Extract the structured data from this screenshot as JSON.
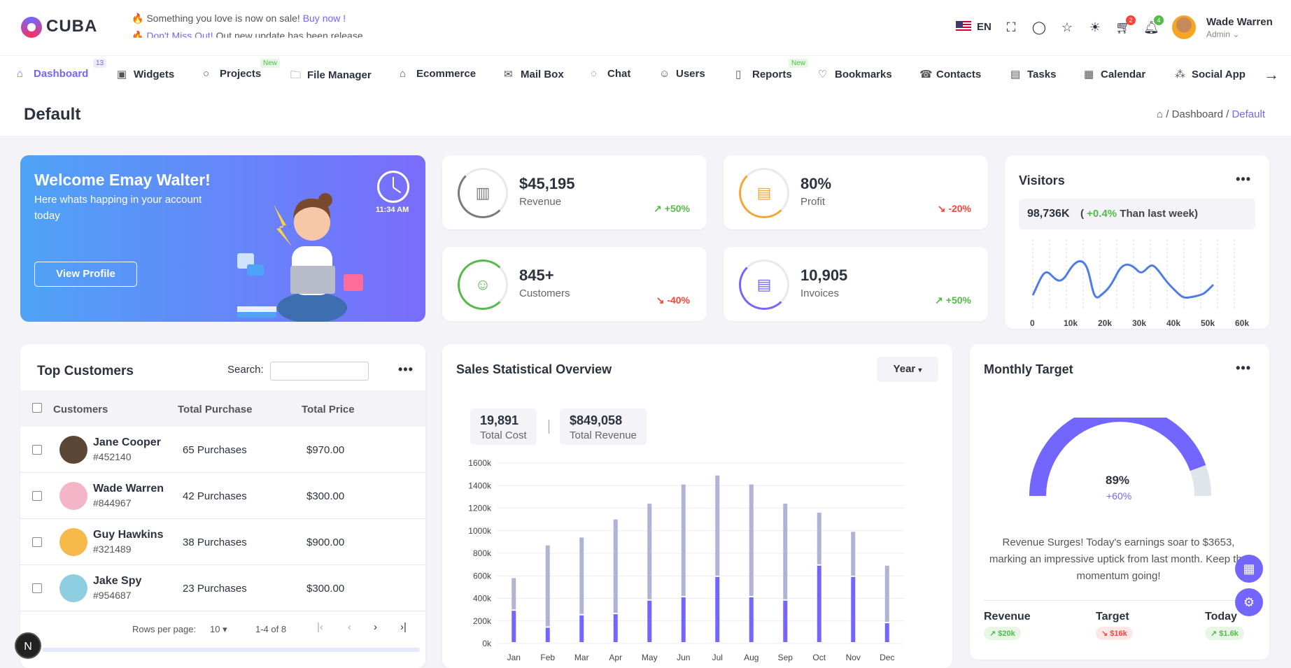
{
  "header": {
    "logo": "CUBA",
    "ticker1_text": "Something you love is now on sale! ",
    "ticker1_link": "Buy now !",
    "ticker2_link": "Don't Miss Out!",
    "ticker2_text": " Out new update has been release.",
    "language": "EN",
    "cart_count": "2",
    "notif_count": "4",
    "user_name": "Wade Warren",
    "user_role": "Admin ⌄"
  },
  "nav": {
    "items": [
      {
        "label": "Dashboard"
      },
      {
        "label": "Widgets"
      },
      {
        "label": "Projects"
      },
      {
        "label": "File Manager"
      },
      {
        "label": "Ecommerce"
      },
      {
        "label": "Mail Box"
      },
      {
        "label": "Chat"
      },
      {
        "label": "Users"
      },
      {
        "label": "Reports"
      },
      {
        "label": "Bookmarks"
      },
      {
        "label": "Contacts"
      },
      {
        "label": "Tasks"
      },
      {
        "label": "Calendar"
      },
      {
        "label": "Social App"
      }
    ],
    "dashboard_count": "13",
    "new_tag": "New"
  },
  "page": {
    "title": "Default",
    "crumb_dashboard": "Dashboard",
    "crumb_current": "Default",
    "sep": "/"
  },
  "welcome": {
    "title": "Welcome Emay Walter!",
    "subtitle": "Here whats happing in your account today",
    "button": "View Profile",
    "time": "11:34 AM"
  },
  "stats": [
    {
      "value": "$45,195",
      "label": "Revenue",
      "change": "+50%",
      "dir": "up",
      "color": "#7a7a7a",
      "icon": "▥"
    },
    {
      "value": "80%",
      "label": "Profit",
      "change": "-20%",
      "dir": "down",
      "color": "#f8a534",
      "icon": "▤"
    },
    {
      "value": "845+",
      "label": "Customers",
      "change": "-40%",
      "dir": "down",
      "color": "#54ba4a",
      "icon": "☺"
    },
    {
      "value": "10,905",
      "label": "Invoices",
      "change": "+50%",
      "dir": "up",
      "color": "#7366ff",
      "icon": "▤"
    }
  ],
  "visitors": {
    "title": "Visitors",
    "total": "98,736K",
    "change_open": "( ",
    "change": "+0.4%",
    "change_text": " Than last week)",
    "x_ticks": [
      "0",
      "10k",
      "20k",
      "30k",
      "40k",
      "50k",
      "60k"
    ]
  },
  "top_customers": {
    "title": "Top Customers",
    "search_label": "Search:",
    "columns": [
      "Customers",
      "Total Purchase",
      "Total Price"
    ],
    "rows": [
      {
        "name": "Jane Cooper",
        "id": "#452140",
        "purchases": "65 Purchases",
        "price": "$970.00",
        "avatar_color": "#5b4636"
      },
      {
        "name": "Wade Warren",
        "id": "#844967",
        "purchases": "42 Purchases",
        "price": "$300.00",
        "avatar_color": "#f4b5c8"
      },
      {
        "name": "Guy Hawkins",
        "id": "#321489",
        "purchases": "38 Purchases",
        "price": "$900.00",
        "avatar_color": "#f6b94a"
      },
      {
        "name": "Jake Spy",
        "id": "#954687",
        "purchases": "23 Purchases",
        "price": "$300.00",
        "avatar_color": "#8fcde0"
      }
    ],
    "rows_per_page_label": "Rows per page:",
    "rows_per_page": "10",
    "range": "1-4 of 8"
  },
  "sales": {
    "title": "Sales Statistical Overview",
    "filter": "Year",
    "total_cost": "19,891",
    "total_cost_label": "Total Cost",
    "total_revenue": "$849,058",
    "total_revenue_label": "Total Revenue"
  },
  "chart_data": {
    "type": "bar",
    "categories": [
      "Jan",
      "Feb",
      "Mar",
      "Apr",
      "May",
      "Jun",
      "Jul",
      "Aug",
      "Sep",
      "Oct",
      "Nov",
      "Dec"
    ],
    "y_ticks": [
      "1600k",
      "1400k",
      "1200k",
      "1000k",
      "800k",
      "600k",
      "400k",
      "200k",
      "0k"
    ],
    "ylim": [
      0,
      1600
    ],
    "series": [
      {
        "values": [
          290,
          140,
          250,
          260,
          380,
          410,
          590,
          410,
          380,
          690,
          590,
          180
        ],
        "color": "#7366ff"
      },
      {
        "values": [
          290,
          730,
          690,
          840,
          860,
          1000,
          900,
          1000,
          860,
          470,
          400,
          510
        ],
        "color": "#b0b3d6"
      }
    ]
  },
  "target": {
    "title": "Monthly Target",
    "percent": "89%",
    "change": "+60%",
    "text": "Revenue Surges! Today's earnings soar to $3653, marking an impressive uptick from last month. Keep the momentum going!",
    "revenue_label": "Revenue",
    "revenue_val": "↗ $20k",
    "target_label": "Target",
    "target_val": "↘ $16k",
    "today_label": "Today",
    "today_val": "↗ $1.6k",
    "gauge": 0.89
  },
  "misc": {
    "dots": "•••",
    "n_badge": "N"
  }
}
